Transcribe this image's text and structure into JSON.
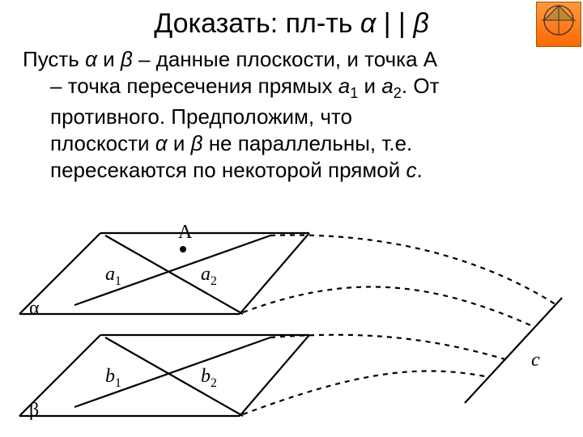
{
  "title": {
    "prefix": "Доказать: пл-ть ",
    "alpha": "α",
    "bars": " | | ",
    "beta": "β"
  },
  "paragraph": {
    "line1_prefix": "Пусть ",
    "alpha1": "α",
    "and1": " и ",
    "beta1": "β",
    "line1_mid": " – данные плоскости, и точка А",
    "line2_a": "– точка пересечения прямых ",
    "a": "а",
    "sub1": "1",
    "and2": " и ",
    "a2": "а",
    "sub2": "2",
    "line2_b": ". От ",
    "line3": "противного. Предположим, что ",
    "line4_a": "плоскости ",
    "alpha2": "α",
    "and3": " и ",
    "beta2": "β",
    "line4_b": " не параллельны, т.е. ",
    "line5_a": "пересекаются по некоторой прямой ",
    "c": "с",
    "dot": "."
  },
  "figure": {
    "labels": {
      "A": "A",
      "a1": "a",
      "a1_sub": "1",
      "a2": "a",
      "a2_sub": "2",
      "b1": "b",
      "b1_sub": "1",
      "b2": "b",
      "b2_sub": "2",
      "c": "c",
      "alpha": "α",
      "beta": "β"
    },
    "style": {
      "stroke": "#000000",
      "stroke_width": 2.2,
      "dash": "6,6",
      "point_radius": 4
    },
    "alpha_plane": {
      "p1": [
        10,
        110
      ],
      "p2": [
        110,
        10
      ],
      "p3": [
        368,
        10
      ],
      "p4": [
        282,
        110
      ]
    },
    "beta_plane": {
      "p1": [
        10,
        236
      ],
      "p2": [
        110,
        136
      ],
      "p3": [
        368,
        136
      ],
      "p4": [
        282,
        236
      ]
    },
    "point_A": [
      212,
      30
    ],
    "line_a1": {
      "from": [
        78,
        99
      ],
      "to": [
        320,
        13
      ]
    },
    "line_a2": {
      "from": [
        116,
        13
      ],
      "to": [
        286,
        110
      ]
    },
    "line_b1": {
      "from": [
        78,
        225
      ],
      "to": [
        320,
        139
      ]
    },
    "line_b2": {
      "from": [
        116,
        139
      ],
      "to": [
        286,
        236
      ]
    },
    "line_c": {
      "from": [
        560,
        220
      ],
      "to": [
        680,
        90
      ]
    },
    "curve1": {
      "from": [
        286,
        108
      ],
      "c1": [
        420,
        58
      ],
      "c2": [
        520,
        70
      ],
      "to": [
        646,
        126
      ]
    },
    "curve2": {
      "from": [
        320,
        13
      ],
      "c1": [
        460,
        8
      ],
      "c2": [
        580,
        40
      ],
      "to": [
        672,
        98
      ]
    },
    "curve3": {
      "from": [
        286,
        234
      ],
      "c1": [
        420,
        184
      ],
      "c2": [
        500,
        170
      ],
      "to": [
        590,
        188
      ]
    },
    "curve4": {
      "from": [
        320,
        139
      ],
      "c1": [
        440,
        130
      ],
      "c2": [
        520,
        140
      ],
      "to": [
        610,
        166
      ]
    },
    "label_pos": {
      "A": [
        206,
        -4
      ],
      "alpha": [
        22,
        90
      ],
      "beta": [
        22,
        216
      ],
      "a1": [
        116,
        48
      ],
      "a2": [
        234,
        48
      ],
      "b1": [
        116,
        174
      ],
      "b2": [
        234,
        174
      ],
      "c": [
        642,
        154
      ]
    }
  }
}
